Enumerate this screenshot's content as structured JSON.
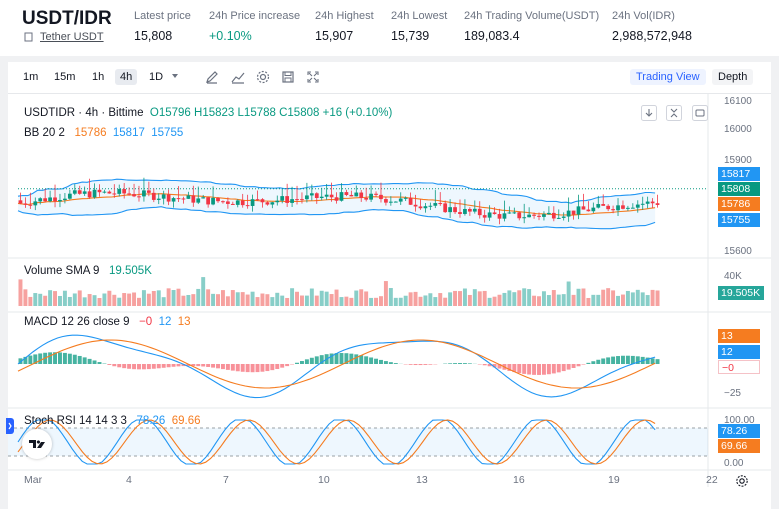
{
  "header": {
    "pair": "USDT/IDR",
    "pair_subtitle": "Tether USDT",
    "stats": [
      {
        "label": "Latest price",
        "value": "15,808",
        "color": "default"
      },
      {
        "label": "24h Price increase",
        "value": "+0.10%",
        "color": "#089981"
      },
      {
        "label": "24h Highest",
        "value": "15,907",
        "color": "default"
      },
      {
        "label": "24h Lowest",
        "value": "15,739",
        "color": "default"
      },
      {
        "label": "24h Trading Volume(USDT)",
        "value": "189,083.4",
        "color": "default"
      },
      {
        "label": "24h Vol(IDR)",
        "value": "2,988,572,948",
        "color": "default"
      }
    ]
  },
  "toolbar": {
    "timeframes": [
      "1m",
      "15m",
      "1h",
      "4h",
      "1D"
    ],
    "active_timeframe": "4h",
    "views": [
      "Trading View",
      "Depth"
    ],
    "active_view": "Trading View",
    "tool_icons": [
      "pencil-icon",
      "line-chart-icon",
      "settings-icon",
      "save-icon",
      "fullscreen-icon"
    ]
  },
  "legends": {
    "symbol": "USDTIDR · 4h · Bittime",
    "ohlc": {
      "o": "O15796",
      "h": "H15823",
      "l": "L15788",
      "c": "C15808",
      "chg": "+16 (+0.10%)"
    },
    "bb": {
      "label": "BB 20 2",
      "v1": "15786",
      "v2": "15817",
      "v3": "15755"
    },
    "volume": {
      "label": "Volume SMA 9",
      "value": "19.505K"
    },
    "macd": {
      "label": "MACD 12 26 close 9",
      "v1": "−0",
      "v2": "12",
      "v3": "13"
    },
    "stoch": {
      "label": "Stoch RSI 14 14 3 3",
      "v1": "78.26",
      "v2": "69.66"
    }
  },
  "price_axis": {
    "ticks": [
      "16100",
      "16000",
      "15900",
      "15600"
    ],
    "badges": [
      {
        "value": "15817",
        "color": "#2196f3"
      },
      {
        "value": "15808",
        "color": "#089981"
      },
      {
        "value": "15786",
        "color": "#f57c20"
      },
      {
        "value": "15755",
        "color": "#2196f3"
      }
    ]
  },
  "volume_axis": {
    "tick": "40K",
    "badge": "19.505K",
    "badge_color": "#26a69a"
  },
  "macd_axis": {
    "badges": [
      {
        "value": "13",
        "color": "#f57c20"
      },
      {
        "value": "12",
        "color": "#2196f3"
      },
      {
        "value": "−0",
        "color": "#ffffff"
      }
    ],
    "tick": "−25"
  },
  "stoch_axis": {
    "ticks": [
      "100.00",
      "0.00"
    ],
    "badges": [
      {
        "value": "78.26",
        "color": "#2196f3"
      },
      {
        "value": "69.66",
        "color": "#f57c20"
      }
    ]
  },
  "time_axis": [
    "Mar",
    "4",
    "7",
    "10",
    "13",
    "16",
    "19",
    "22"
  ],
  "colors": {
    "up": "#089981",
    "down": "#f23645",
    "bb": "#2196f3",
    "basis": "#f57c20"
  }
}
